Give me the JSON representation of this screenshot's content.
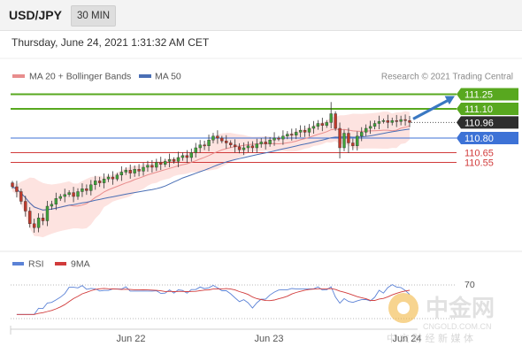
{
  "header": {
    "symbol": "USD/JPY",
    "interval": "30 MIN",
    "datetime": "Thursday, June 24, 2021 1:31:32 AM CET"
  },
  "legend": {
    "ma20": "MA 20 + Bollinger Bands",
    "ma50": "MA 50",
    "copyright": "Research © 2021 Trading Central",
    "rsi": "RSI",
    "rsi_ma": "9MA"
  },
  "levels": [
    {
      "value": 111.25,
      "label": "111.25",
      "kind": "resistance",
      "color": "#58a81f"
    },
    {
      "value": 111.1,
      "label": "111.10",
      "kind": "resistance",
      "color": "#58a81f"
    },
    {
      "value": 110.96,
      "label": "110.96",
      "kind": "last",
      "color": "#2d2d2d"
    },
    {
      "value": 110.8,
      "label": "110.80",
      "kind": "pivot",
      "color": "#3d72d6"
    },
    {
      "value": 110.65,
      "label": "110.65",
      "kind": "support",
      "color": "#d13b3b"
    },
    {
      "value": 110.55,
      "label": "110.55",
      "kind": "support",
      "color": "#d13b3b"
    }
  ],
  "colors": {
    "bull": "#3fa33a",
    "bear": "#c0392b",
    "ma20": "#e88d8d",
    "bands": "#fde3e0",
    "ma50": "#4a6fb5",
    "rsi": "#5b82d6",
    "rsi_ma": "#d13b3b",
    "arrow": "#3a78c2"
  },
  "watermark": {
    "logo_text": "中金网",
    "domain": "CNGOLD.COM.CN",
    "slogan": "中 文 财 经 新 媒 体"
  },
  "chart_data": {
    "type": "candlestick",
    "instrument": "USD/JPY",
    "timeframe": "30 MIN",
    "x_ticks": [
      "Jun 22",
      "Jun 23",
      "Jun 24"
    ],
    "y_range": [
      109.7,
      111.3
    ],
    "close": [
      110.3,
      110.25,
      110.15,
      110.05,
      109.92,
      109.88,
      109.98,
      109.95,
      110.1,
      110.12,
      110.18,
      110.2,
      110.22,
      110.24,
      110.2,
      110.25,
      110.28,
      110.26,
      110.32,
      110.36,
      110.34,
      110.38,
      110.4,
      110.38,
      110.42,
      110.45,
      110.47,
      110.44,
      110.48,
      110.46,
      110.5,
      110.52,
      110.5,
      110.55,
      110.53,
      110.56,
      110.58,
      110.56,
      110.6,
      110.62,
      110.6,
      110.65,
      110.7,
      110.73,
      110.72,
      110.78,
      110.82,
      110.8,
      110.77,
      110.75,
      110.73,
      110.71,
      110.68,
      110.7,
      110.72,
      110.7,
      110.74,
      110.76,
      110.74,
      110.78,
      110.8,
      110.79,
      110.82,
      110.84,
      110.83,
      110.86,
      110.88,
      110.86,
      110.9,
      110.92,
      110.95,
      110.93,
      110.96,
      111.05,
      110.9,
      110.7,
      110.85,
      110.75,
      110.72,
      110.82,
      110.86,
      110.9,
      110.92,
      110.95,
      110.97,
      110.98,
      110.96,
      110.98,
      110.97,
      110.99,
      110.98,
      110.96
    ],
    "ma50_end": 110.78,
    "ma20_end": 110.9,
    "projection": {
      "from": 110.96,
      "to": 111.25
    },
    "rsi": {
      "level_label": "70",
      "level": 70,
      "range": [
        0,
        100
      ]
    }
  }
}
